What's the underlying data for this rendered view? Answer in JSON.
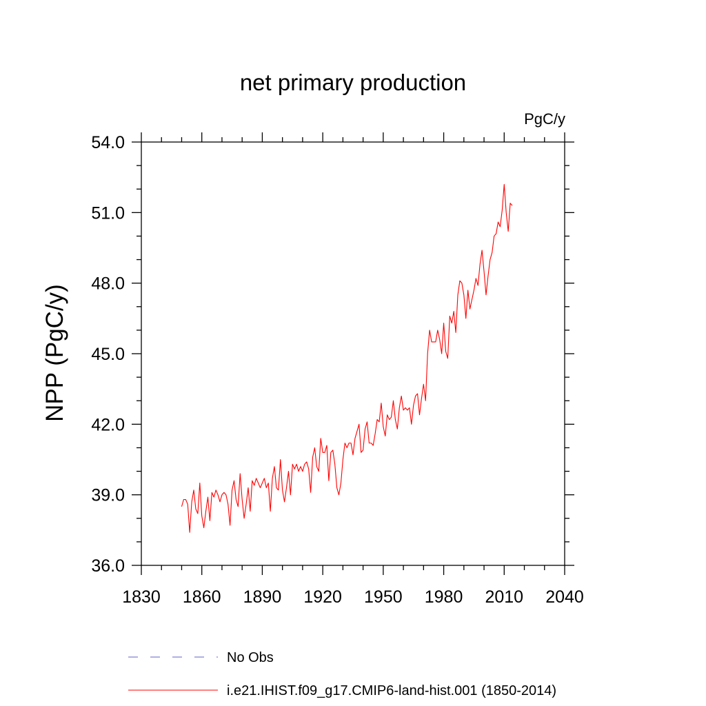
{
  "chart_data": {
    "type": "line",
    "title": "net primary production",
    "units": "PgC/y",
    "ylabel": "NPP  (PgC/y)",
    "xlabel": "",
    "xlim": [
      1830,
      2040
    ],
    "ylim": [
      36.0,
      54.0
    ],
    "x_ticks": [
      "1830",
      "1860",
      "1890",
      "1920",
      "1950",
      "1980",
      "2010",
      "2040"
    ],
    "y_ticks": [
      "36.0",
      "39.0",
      "42.0",
      "45.0",
      "48.0",
      "51.0",
      "54.0"
    ],
    "grid": false,
    "legend_position": "bottom",
    "legend": [
      {
        "label": "No Obs",
        "style": "dashed",
        "color": "#8080d0"
      },
      {
        "label": "i.e21.IHIST.f09_g17.CMIP6-land-hist.001 (1850-2014)",
        "style": "solid",
        "color": "#ff0000"
      }
    ],
    "series": [
      {
        "name": "i.e21.IHIST.f09_g17.CMIP6-land-hist.001 (1850-2014)",
        "color": "#ff0000",
        "x_start": 1850,
        "x_end": 2014,
        "values": [
          38.5,
          38.8,
          38.8,
          38.6,
          37.4,
          38.7,
          39.2,
          38.4,
          38.2,
          39.5,
          38.1,
          37.6,
          38.3,
          38.9,
          37.9,
          39.1,
          38.9,
          39.2,
          39.0,
          38.7,
          39.0,
          39.1,
          39.0,
          38.6,
          37.7,
          39.2,
          39.6,
          38.8,
          38.5,
          39.9,
          38.8,
          38.0,
          38.6,
          39.3,
          38.3,
          39.6,
          39.4,
          39.7,
          39.5,
          39.3,
          39.5,
          39.7,
          39.3,
          39.5,
          38.3,
          39.7,
          40.2,
          39.3,
          39.2,
          40.5,
          39.2,
          38.7,
          39.3,
          40.0,
          39.0,
          40.3,
          40.1,
          40.3,
          40.0,
          40.2,
          40.0,
          40.3,
          40.4,
          40.1,
          39.1,
          40.6,
          41.0,
          40.2,
          40.0,
          41.4,
          40.8,
          40.8,
          41.1,
          39.6,
          40.8,
          40.9,
          40.3,
          39.3,
          39.0,
          39.5,
          40.5,
          41.2,
          41.0,
          41.2,
          41.2,
          40.7,
          41.4,
          41.7,
          42.0,
          40.8,
          40.9,
          41.8,
          42.1,
          41.2,
          41.2,
          41.1,
          41.6,
          42.2,
          42.1,
          42.9,
          41.9,
          41.5,
          42.4,
          42.2,
          42.3,
          43.0,
          42.2,
          41.8,
          42.7,
          43.2,
          42.6,
          42.7,
          42.6,
          42.7,
          42.0,
          42.8,
          43.2,
          43.3,
          42.4,
          43.1,
          43.7,
          43.0,
          45.0,
          46.0,
          45.5,
          45.5,
          45.5,
          46.0,
          45.6,
          45.0,
          46.3,
          45.1,
          44.8,
          46.6,
          46.3,
          46.8,
          45.9,
          47.5,
          48.1,
          48.0,
          47.5,
          46.5,
          47.7,
          46.9,
          47.3,
          47.7,
          48.2,
          47.9,
          48.8,
          49.4,
          48.5,
          47.5,
          48.3,
          49.0,
          49.3,
          50.0,
          50.1,
          50.6,
          50.4,
          51.1,
          52.2,
          51.0,
          50.2,
          51.4,
          51.3
        ]
      }
    ]
  }
}
